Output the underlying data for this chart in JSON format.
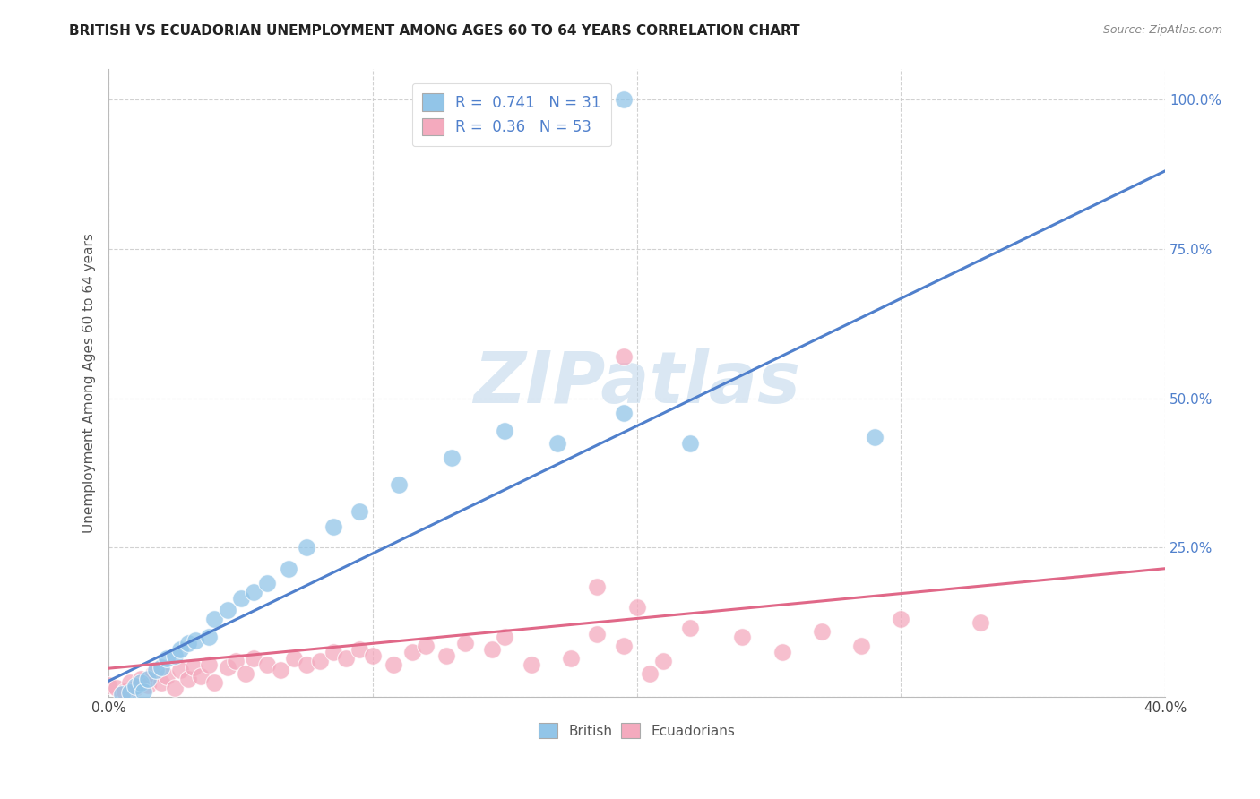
{
  "title": "BRITISH VS ECUADORIAN UNEMPLOYMENT AMONG AGES 60 TO 64 YEARS CORRELATION CHART",
  "source": "Source: ZipAtlas.com",
  "ylabel": "Unemployment Among Ages 60 to 64 years",
  "xlim": [
    0.0,
    0.4
  ],
  "ylim": [
    0.0,
    1.05
  ],
  "x_ticks": [
    0.0,
    0.1,
    0.2,
    0.3,
    0.4
  ],
  "x_tick_labels": [
    "0.0%",
    "",
    "",
    "",
    "40.0%"
  ],
  "y_ticks": [
    0.0,
    0.25,
    0.5,
    0.75,
    1.0
  ],
  "y_tick_labels": [
    "",
    "25.0%",
    "50.0%",
    "75.0%",
    "100.0%"
  ],
  "british_R": 0.741,
  "british_N": 31,
  "ecuadorian_R": 0.36,
  "ecuadorian_N": 53,
  "british_color": "#92C5E8",
  "ecuadorian_color": "#F4AABE",
  "british_line_color": "#5080CC",
  "ecuadorian_line_color": "#E06888",
  "legend_label_british": "British",
  "legend_label_ecuadorian": "Ecuadorians",
  "british_x": [
    0.005,
    0.008,
    0.01,
    0.012,
    0.013,
    0.015,
    0.018,
    0.02,
    0.022,
    0.025,
    0.027,
    0.03,
    0.033,
    0.038,
    0.04,
    0.045,
    0.05,
    0.055,
    0.06,
    0.068,
    0.075,
    0.085,
    0.095,
    0.11,
    0.13,
    0.15,
    0.17,
    0.195,
    0.22,
    0.29,
    0.195
  ],
  "british_y": [
    0.005,
    0.008,
    0.018,
    0.025,
    0.01,
    0.03,
    0.045,
    0.05,
    0.065,
    0.07,
    0.08,
    0.09,
    0.095,
    0.1,
    0.13,
    0.145,
    0.165,
    0.175,
    0.19,
    0.215,
    0.25,
    0.285,
    0.31,
    0.355,
    0.4,
    0.445,
    0.425,
    0.475,
    0.425,
    0.435,
    1.0
  ],
  "ecuadorian_x": [
    0.0,
    0.003,
    0.006,
    0.008,
    0.01,
    0.012,
    0.015,
    0.017,
    0.02,
    0.022,
    0.025,
    0.027,
    0.03,
    0.032,
    0.035,
    0.038,
    0.04,
    0.045,
    0.048,
    0.052,
    0.055,
    0.06,
    0.065,
    0.07,
    0.075,
    0.08,
    0.085,
    0.09,
    0.095,
    0.1,
    0.108,
    0.115,
    0.12,
    0.128,
    0.135,
    0.145,
    0.15,
    0.16,
    0.175,
    0.185,
    0.195,
    0.205,
    0.22,
    0.24,
    0.255,
    0.27,
    0.285,
    0.3,
    0.2,
    0.21,
    0.33,
    0.185,
    0.195
  ],
  "ecuadorian_y": [
    0.02,
    0.015,
    0.01,
    0.025,
    0.015,
    0.03,
    0.02,
    0.04,
    0.025,
    0.035,
    0.015,
    0.045,
    0.03,
    0.05,
    0.035,
    0.055,
    0.025,
    0.05,
    0.06,
    0.04,
    0.065,
    0.055,
    0.045,
    0.065,
    0.055,
    0.06,
    0.075,
    0.065,
    0.08,
    0.07,
    0.055,
    0.075,
    0.085,
    0.07,
    0.09,
    0.08,
    0.1,
    0.055,
    0.065,
    0.105,
    0.085,
    0.04,
    0.115,
    0.1,
    0.075,
    0.11,
    0.085,
    0.13,
    0.15,
    0.06,
    0.125,
    0.185,
    0.57
  ],
  "british_line": [
    [
      0.0,
      0.027
    ],
    [
      0.4,
      0.88
    ]
  ],
  "ecuadorian_line": [
    [
      0.0,
      0.048
    ],
    [
      0.4,
      0.215
    ]
  ],
  "watermark": "ZIPatlas",
  "background_color": "#FFFFFF",
  "grid_color": "#CCCCCC"
}
